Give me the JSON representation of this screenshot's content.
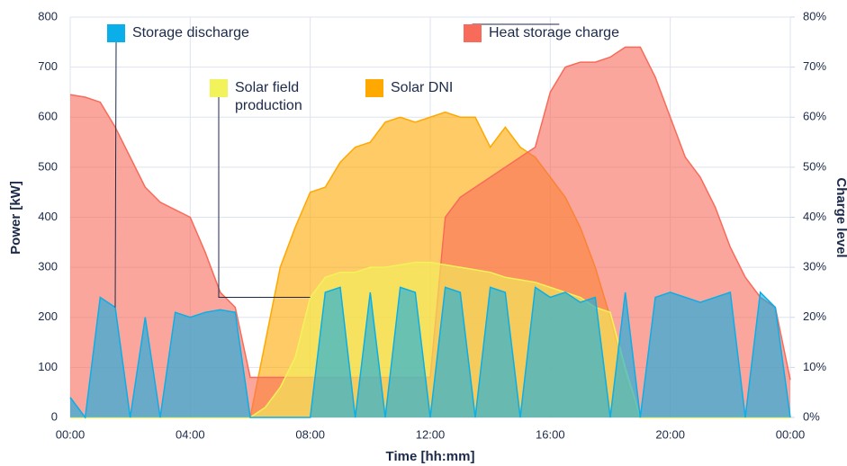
{
  "chart_data": {
    "type": "area",
    "xlabel": "Time [hh:mm]",
    "ylabel": "Power [kW]",
    "y2label": "Charge level",
    "x": [
      0,
      0.5,
      1,
      1.5,
      2,
      2.5,
      3,
      3.5,
      4,
      4.5,
      5,
      5.5,
      6,
      6.5,
      7,
      7.5,
      8,
      8.5,
      9,
      9.5,
      10,
      10.5,
      11,
      11.5,
      12,
      12.5,
      13,
      13.5,
      14,
      14.5,
      15,
      15.5,
      16,
      16.5,
      17,
      17.5,
      18,
      18.5,
      19,
      19.5,
      20,
      20.5,
      21,
      21.5,
      22,
      22.5,
      23,
      23.5,
      24
    ],
    "xlim": [
      0,
      24
    ],
    "xticks": [
      {
        "value": 0,
        "label": "00:00"
      },
      {
        "value": 4,
        "label": "04:00"
      },
      {
        "value": 8,
        "label": "08:00"
      },
      {
        "value": 12,
        "label": "12:00"
      },
      {
        "value": 16,
        "label": "16:00"
      },
      {
        "value": 20,
        "label": "20:00"
      },
      {
        "value": 24,
        "label": "00:00"
      }
    ],
    "ylim": [
      0,
      800
    ],
    "yticks": [
      0,
      100,
      200,
      300,
      400,
      500,
      600,
      700,
      800
    ],
    "y2lim": [
      0,
      80
    ],
    "y2ticks": [
      {
        "value": 0,
        "label": "0%"
      },
      {
        "value": 10,
        "label": "10%"
      },
      {
        "value": 20,
        "label": "20%"
      },
      {
        "value": 30,
        "label": "30%"
      },
      {
        "value": 40,
        "label": "40%"
      },
      {
        "value": 50,
        "label": "50%"
      },
      {
        "value": 60,
        "label": "60%"
      },
      {
        "value": 70,
        "label": "70%"
      },
      {
        "value": 80,
        "label": "80%"
      }
    ],
    "grid": true,
    "series": [
      {
        "name": "Solar DNI",
        "color": "#ffa800",
        "values": [
          0,
          0,
          0,
          0,
          0,
          0,
          0,
          0,
          0,
          0,
          0,
          0,
          0,
          150,
          300,
          380,
          450,
          460,
          510,
          540,
          550,
          590,
          600,
          590,
          600,
          610,
          600,
          600,
          540,
          580,
          540,
          520,
          480,
          440,
          380,
          300,
          200,
          80,
          0,
          0,
          0,
          0,
          0,
          0,
          0,
          0,
          0,
          0,
          0
        ]
      },
      {
        "name": "Heat storage charge",
        "color": "#f86b5a",
        "axis": "y2",
        "values": [
          64.5,
          64,
          63,
          58,
          52,
          46,
          43,
          41.5,
          40,
          33,
          25,
          22,
          8,
          8,
          8,
          8,
          8,
          8,
          8,
          8,
          8,
          8,
          8,
          8,
          8,
          40,
          44,
          46,
          48,
          50,
          52,
          54,
          65,
          70,
          71,
          71,
          72,
          74,
          74,
          68,
          60,
          52,
          48,
          42,
          34,
          28,
          24,
          22,
          7.5
        ]
      },
      {
        "name": "Solar field production",
        "color": "#f2f25a",
        "values": [
          0,
          0,
          0,
          0,
          0,
          0,
          0,
          0,
          0,
          0,
          0,
          0,
          0,
          20,
          60,
          120,
          240,
          280,
          290,
          290,
          300,
          300,
          305,
          310,
          310,
          305,
          300,
          295,
          290,
          280,
          275,
          270,
          260,
          250,
          240,
          220,
          210,
          100,
          0,
          0,
          0,
          0,
          0,
          0,
          0,
          0,
          0,
          0,
          0
        ]
      },
      {
        "name": "Storage discharge",
        "color": "#0aaee8",
        "values": [
          40,
          0,
          240,
          220,
          0,
          200,
          0,
          210,
          200,
          210,
          215,
          210,
          0,
          0,
          0,
          0,
          0,
          250,
          260,
          0,
          250,
          0,
          260,
          250,
          0,
          260,
          250,
          0,
          260,
          250,
          0,
          260,
          240,
          250,
          230,
          240,
          0,
          250,
          0,
          240,
          250,
          240,
          230,
          240,
          250,
          0,
          250,
          220,
          0
        ]
      }
    ]
  }
}
